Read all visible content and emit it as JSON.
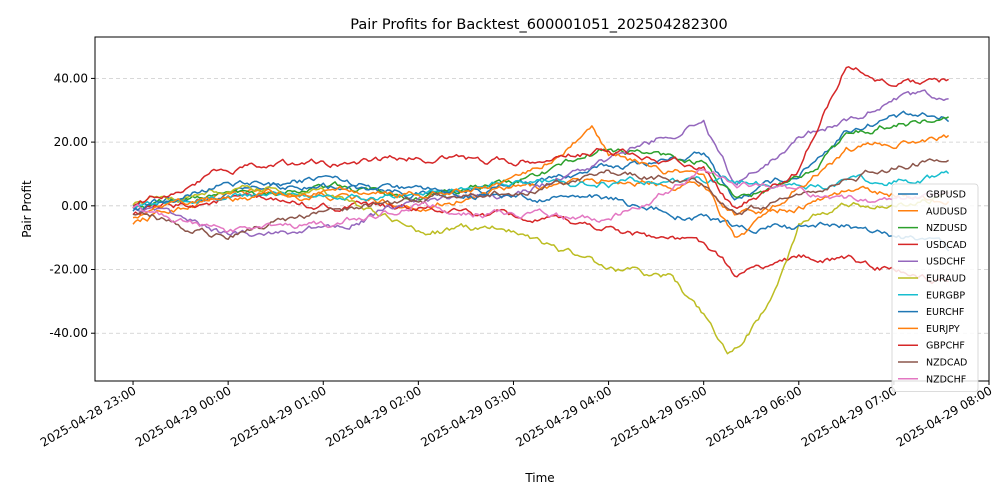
{
  "chart_data": {
    "type": "line",
    "title": "Pair Profits for Backtest_600001051_202504282300",
    "xlabel": "Time",
    "ylabel": "Pair Profit",
    "x_ticks": [
      "2025-04-28 23:00",
      "2025-04-29 00:00",
      "2025-04-29 01:00",
      "2025-04-29 02:00",
      "2025-04-29 03:00",
      "2025-04-29 04:00",
      "2025-04-29 05:00",
      "2025-04-29 06:00",
      "2025-04-29 07:00",
      "2025-04-29 08:00"
    ],
    "xlim": [
      "2025-04-28 22:36",
      "2025-04-29 08:00"
    ],
    "y_ticks": [
      "-40.00",
      "-20.00",
      "0.00",
      "20.00",
      "40.00"
    ],
    "ylim": [
      -55,
      53
    ],
    "grid": "y-dashed",
    "legend_position": "lower-right",
    "series": [
      {
        "name": "GBPUSD",
        "color": "#1f77b4",
        "points": [
          [
            "2025-04-28 23:00",
            1
          ],
          [
            "2025-04-29 00:00",
            3
          ],
          [
            "2025-04-29 01:00",
            9
          ],
          [
            "2025-04-29 02:00",
            4
          ],
          [
            "2025-04-29 03:00",
            6
          ],
          [
            "2025-04-29 04:00",
            12
          ],
          [
            "2025-04-29 05:00",
            16
          ],
          [
            "2025-04-29 05:20",
            2
          ],
          [
            "2025-04-29 06:00",
            10
          ],
          [
            "2025-04-29 06:30",
            24
          ],
          [
            "2025-04-29 07:00",
            28
          ],
          [
            "2025-04-29 07:35",
            27
          ]
        ]
      },
      {
        "name": "AUDUSD",
        "color": "#ff7f0e",
        "points": [
          [
            "2025-04-28 23:00",
            -5
          ],
          [
            "2025-04-29 00:00",
            4
          ],
          [
            "2025-04-29 01:00",
            3
          ],
          [
            "2025-04-29 02:00",
            0
          ],
          [
            "2025-04-29 03:00",
            5
          ],
          [
            "2025-04-29 04:00",
            8
          ],
          [
            "2025-04-29 05:00",
            7
          ],
          [
            "2025-04-29 05:20",
            -3
          ],
          [
            "2025-04-29 06:00",
            0
          ],
          [
            "2025-04-29 06:30",
            5
          ],
          [
            "2025-04-29 07:00",
            4
          ],
          [
            "2025-04-29 07:35",
            2
          ]
        ]
      },
      {
        "name": "NZDUSD",
        "color": "#2ca02c",
        "points": [
          [
            "2025-04-28 23:00",
            0
          ],
          [
            "2025-04-29 00:00",
            4
          ],
          [
            "2025-04-29 01:00",
            6
          ],
          [
            "2025-04-29 02:00",
            3
          ],
          [
            "2025-04-29 03:00",
            7
          ],
          [
            "2025-04-29 04:00",
            18
          ],
          [
            "2025-04-29 05:00",
            14
          ],
          [
            "2025-04-29 05:20",
            1
          ],
          [
            "2025-04-29 06:00",
            8
          ],
          [
            "2025-04-29 06:30",
            22
          ],
          [
            "2025-04-29 07:00",
            26
          ],
          [
            "2025-04-29 07:35",
            27
          ]
        ]
      },
      {
        "name": "USDCAD",
        "color": "#d62728",
        "points": [
          [
            "2025-04-28 23:00",
            -2
          ],
          [
            "2025-04-29 00:00",
            2
          ],
          [
            "2025-04-29 01:00",
            0
          ],
          [
            "2025-04-29 02:00",
            -1
          ],
          [
            "2025-04-29 03:00",
            -4
          ],
          [
            "2025-04-29 04:00",
            -7
          ],
          [
            "2025-04-29 05:00",
            -12
          ],
          [
            "2025-04-29 05:20",
            -22
          ],
          [
            "2025-04-29 06:00",
            -16
          ],
          [
            "2025-04-29 06:30",
            -17
          ],
          [
            "2025-04-29 07:00",
            -20
          ],
          [
            "2025-04-29 07:35",
            -25
          ]
        ]
      },
      {
        "name": "USDCHF",
        "color": "#9467bd",
        "points": [
          [
            "2025-04-28 23:00",
            0
          ],
          [
            "2025-04-29 00:00",
            -9
          ],
          [
            "2025-04-29 01:00",
            -7
          ],
          [
            "2025-04-29 02:00",
            1
          ],
          [
            "2025-04-29 03:00",
            3
          ],
          [
            "2025-04-29 04:00",
            14
          ],
          [
            "2025-04-29 05:00",
            27
          ],
          [
            "2025-04-29 05:20",
            6
          ],
          [
            "2025-04-29 06:00",
            22
          ],
          [
            "2025-04-29 06:30",
            27
          ],
          [
            "2025-04-29 07:00",
            34
          ],
          [
            "2025-04-29 07:35",
            34
          ]
        ]
      },
      {
        "name": "EURAUD",
        "color": "#bcbd22",
        "points": [
          [
            "2025-04-28 23:00",
            1
          ],
          [
            "2025-04-29 00:00",
            5
          ],
          [
            "2025-04-29 01:00",
            4
          ],
          [
            "2025-04-29 02:00",
            -8
          ],
          [
            "2025-04-29 03:00",
            -7
          ],
          [
            "2025-04-29 04:00",
            -20
          ],
          [
            "2025-04-29 04:40",
            -22
          ],
          [
            "2025-04-29 05:00",
            -35
          ],
          [
            "2025-04-29 05:15",
            -48
          ],
          [
            "2025-04-29 05:40",
            -32
          ],
          [
            "2025-04-29 06:00",
            -5
          ],
          [
            "2025-04-29 06:30",
            0
          ],
          [
            "2025-04-29 07:00",
            0
          ],
          [
            "2025-04-29 07:35",
            3
          ]
        ]
      },
      {
        "name": "EURGBP",
        "color": "#17becf",
        "points": [
          [
            "2025-04-28 23:00",
            0
          ],
          [
            "2025-04-29 00:00",
            3
          ],
          [
            "2025-04-29 01:00",
            4
          ],
          [
            "2025-04-29 02:00",
            3
          ],
          [
            "2025-04-29 03:00",
            8
          ],
          [
            "2025-04-29 04:00",
            7
          ],
          [
            "2025-04-29 05:00",
            8
          ],
          [
            "2025-04-29 05:20",
            7
          ],
          [
            "2025-04-29 06:00",
            7
          ],
          [
            "2025-04-29 06:30",
            7
          ],
          [
            "2025-04-29 07:00",
            8
          ],
          [
            "2025-04-29 07:35",
            9
          ]
        ]
      },
      {
        "name": "EURCHF",
        "color": "#1f77b4",
        "points": [
          [
            "2025-04-28 23:00",
            -1
          ],
          [
            "2025-04-29 00:00",
            8
          ],
          [
            "2025-04-29 01:00",
            6
          ],
          [
            "2025-04-29 02:00",
            4
          ],
          [
            "2025-04-29 03:00",
            3
          ],
          [
            "2025-04-29 04:00",
            2
          ],
          [
            "2025-04-29 05:00",
            -4
          ],
          [
            "2025-04-29 05:20",
            -7
          ],
          [
            "2025-04-29 06:00",
            -7
          ],
          [
            "2025-04-29 06:30",
            -6
          ],
          [
            "2025-04-29 07:00",
            -9
          ],
          [
            "2025-04-29 07:35",
            -14
          ]
        ]
      },
      {
        "name": "EURJPY",
        "color": "#ff7f0e",
        "points": [
          [
            "2025-04-28 23:00",
            -3
          ],
          [
            "2025-04-29 00:00",
            2
          ],
          [
            "2025-04-29 01:00",
            5
          ],
          [
            "2025-04-29 02:00",
            4
          ],
          [
            "2025-04-29 03:00",
            7
          ],
          [
            "2025-04-29 03:50",
            23
          ],
          [
            "2025-04-29 04:00",
            15
          ],
          [
            "2025-04-29 05:00",
            9
          ],
          [
            "2025-04-29 05:20",
            -11
          ],
          [
            "2025-04-29 06:00",
            6
          ],
          [
            "2025-04-29 06:30",
            17
          ],
          [
            "2025-04-29 07:00",
            20
          ],
          [
            "2025-04-29 07:35",
            21
          ]
        ]
      },
      {
        "name": "GBPCHF",
        "color": "#d62728",
        "points": [
          [
            "2025-04-28 23:00",
            0
          ],
          [
            "2025-04-29 00:00",
            12
          ],
          [
            "2025-04-29 01:00",
            13
          ],
          [
            "2025-04-29 02:00",
            15
          ],
          [
            "2025-04-29 03:00",
            14
          ],
          [
            "2025-04-29 04:00",
            18
          ],
          [
            "2025-04-29 05:00",
            12
          ],
          [
            "2025-04-29 05:20",
            -2
          ],
          [
            "2025-04-29 06:00",
            12
          ],
          [
            "2025-04-29 06:30",
            45
          ],
          [
            "2025-04-29 07:00",
            38
          ],
          [
            "2025-04-29 07:35",
            39
          ]
        ]
      },
      {
        "name": "NZDCAD",
        "color": "#8c564b",
        "points": [
          [
            "2025-04-28 23:00",
            -2
          ],
          [
            "2025-04-29 00:00",
            -10
          ],
          [
            "2025-04-29 01:00",
            -1
          ],
          [
            "2025-04-29 02:00",
            2
          ],
          [
            "2025-04-29 03:00",
            5
          ],
          [
            "2025-04-29 04:00",
            10
          ],
          [
            "2025-04-29 05:00",
            7
          ],
          [
            "2025-04-29 05:20",
            -3
          ],
          [
            "2025-04-29 06:00",
            2
          ],
          [
            "2025-04-29 06:30",
            8
          ],
          [
            "2025-04-29 07:00",
            12
          ],
          [
            "2025-04-29 07:35",
            15
          ]
        ]
      },
      {
        "name": "NZDCHF",
        "color": "#e377c2",
        "points": [
          [
            "2025-04-28 23:00",
            0
          ],
          [
            "2025-04-29 00:00",
            -9
          ],
          [
            "2025-04-29 01:00",
            -6
          ],
          [
            "2025-04-29 02:00",
            0
          ],
          [
            "2025-04-29 03:00",
            -3
          ],
          [
            "2025-04-29 04:00",
            -5
          ],
          [
            "2025-04-29 05:00",
            12
          ],
          [
            "2025-04-29 05:20",
            7
          ],
          [
            "2025-04-29 06:00",
            5
          ],
          [
            "2025-04-29 06:30",
            2
          ],
          [
            "2025-04-29 07:00",
            2
          ],
          [
            "2025-04-29 07:35",
            3
          ]
        ]
      }
    ]
  }
}
